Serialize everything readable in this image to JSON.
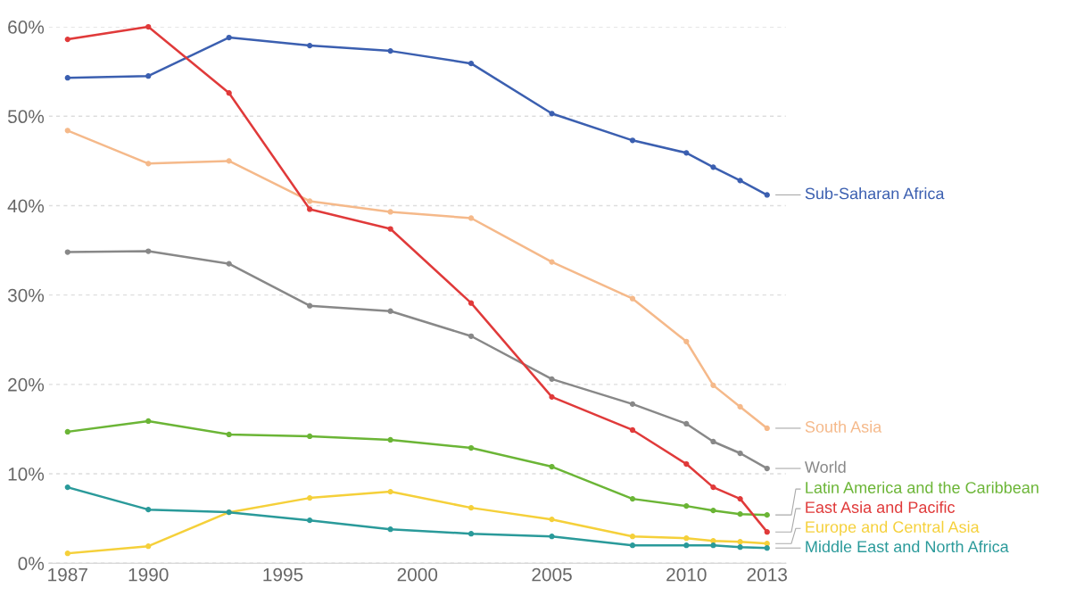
{
  "chart_data": {
    "type": "line",
    "x": [
      1987,
      1990,
      1993,
      1996,
      1999,
      2002,
      2005,
      2008,
      2010,
      2011,
      2012,
      2013
    ],
    "series": [
      {
        "name": "Sub-Saharan Africa",
        "color": "#3b5fb0",
        "values": [
          54.3,
          54.5,
          58.8,
          57.9,
          57.3,
          55.9,
          50.3,
          47.3,
          45.9,
          44.3,
          42.8,
          41.2
        ]
      },
      {
        "name": "South Asia",
        "color": "#f5b98a",
        "values": [
          48.4,
          44.7,
          45.0,
          40.5,
          39.3,
          38.6,
          33.7,
          29.6,
          24.8,
          19.9,
          17.5,
          15.1
        ]
      },
      {
        "name": "World",
        "color": "#888888",
        "values": [
          34.8,
          34.9,
          33.5,
          28.8,
          28.2,
          25.4,
          20.6,
          17.8,
          15.6,
          13.6,
          12.3,
          10.6
        ]
      },
      {
        "name": "Latin America and the Caribbean",
        "color": "#6bb536",
        "values": [
          14.7,
          15.9,
          14.4,
          14.2,
          13.8,
          12.9,
          10.8,
          7.2,
          6.4,
          5.9,
          5.5,
          5.4
        ]
      },
      {
        "name": "East Asia and Pacific",
        "color": "#e03a3a",
        "values": [
          58.6,
          60.0,
          52.6,
          39.6,
          37.4,
          29.1,
          18.6,
          14.9,
          11.1,
          8.5,
          7.2,
          3.5
        ]
      },
      {
        "name": "Europe and Central Asia",
        "color": "#f5d03a",
        "values": [
          1.1,
          1.9,
          5.7,
          7.3,
          8.0,
          6.2,
          4.9,
          3.0,
          2.8,
          2.5,
          2.4,
          2.2
        ]
      },
      {
        "name": "Middle East and North Africa",
        "color": "#2a9a9a",
        "values": [
          8.5,
          6.0,
          5.7,
          4.8,
          3.8,
          3.3,
          3.0,
          2.0,
          2.0,
          2.0,
          1.8,
          1.7
        ]
      }
    ],
    "xlim": [
      1986.3,
      2013.7
    ],
    "xticks": [
      1987,
      1990,
      1995,
      2000,
      2005,
      2010,
      2013
    ],
    "ylim": [
      0,
      60
    ],
    "yticks": [
      {
        "value": 0,
        "label": "0%"
      },
      {
        "value": 10,
        "label": "10%"
      },
      {
        "value": 20,
        "label": "20%"
      },
      {
        "value": 30,
        "label": "30%"
      },
      {
        "value": 40,
        "label": "40%"
      },
      {
        "value": 50,
        "label": "50%"
      },
      {
        "value": 60,
        "label": "60%"
      }
    ],
    "grid": "y",
    "marker": "circle",
    "line_style": "solid",
    "legend": false
  }
}
